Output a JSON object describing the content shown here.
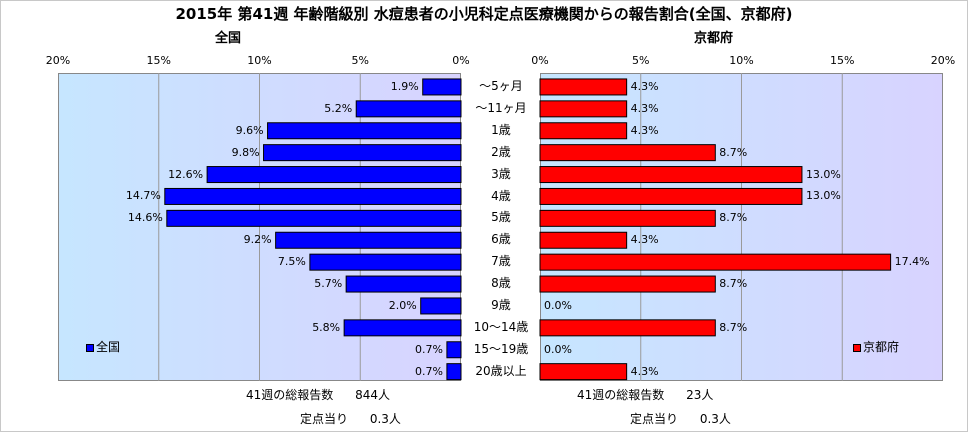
{
  "title": "2015年 第41週 年齢階級別 水痘患者の小児科定点医療機関からの報告割合(全国、京都府)",
  "chart_data": {
    "type": "bar",
    "orientation": "horizontal",
    "categories": [
      "～5ヶ月",
      "～11ヶ月",
      "1歳",
      "2歳",
      "3歳",
      "4歳",
      "5歳",
      "6歳",
      "7歳",
      "8歳",
      "9歳",
      "10～14歳",
      "15～19歳",
      "20歳以上"
    ],
    "ticks": [
      "0%",
      "5%",
      "10%",
      "15%",
      "20%"
    ],
    "xlim": [
      0,
      20
    ],
    "unit": "%",
    "legend_position": "bottom-left / bottom-right",
    "series": [
      {
        "name": "全国",
        "title": "全国",
        "color": "#0000ff",
        "direction": "left",
        "values": [
          1.9,
          5.2,
          9.6,
          9.8,
          12.6,
          14.7,
          14.6,
          9.2,
          7.5,
          5.7,
          2.0,
          5.8,
          0.7,
          0.7
        ],
        "labels": [
          "1.9%",
          "5.2%",
          "9.6%",
          "9.8%",
          "12.6%",
          "14.7%",
          "14.6%",
          "9.2%",
          "7.5%",
          "5.7%",
          "2.0%",
          "5.8%",
          "0.7%",
          "0.7%"
        ]
      },
      {
        "name": "京都府",
        "title": "京都府",
        "color": "#ff0000",
        "direction": "right",
        "values": [
          4.3,
          4.3,
          4.3,
          8.7,
          13.0,
          13.0,
          8.7,
          4.3,
          17.4,
          8.7,
          0.0,
          8.7,
          0.0,
          4.3
        ],
        "labels": [
          "4.3%",
          "4.3%",
          "4.3%",
          "8.7%",
          "13.0%",
          "13.0%",
          "8.7%",
          "4.3%",
          "17.4%",
          "8.7%",
          "0.0%",
          "8.7%",
          "0.0%",
          "4.3%"
        ]
      }
    ]
  },
  "notes": {
    "national": {
      "total_label": "41週の総報告数",
      "total_value": "844人",
      "per_site_label": "定点当り",
      "per_site_value": "0.3人"
    },
    "kyoto": {
      "total_label": "41週の総報告数",
      "total_value": "23人",
      "per_site_label": "定点当り",
      "per_site_value": "0.3人"
    }
  }
}
